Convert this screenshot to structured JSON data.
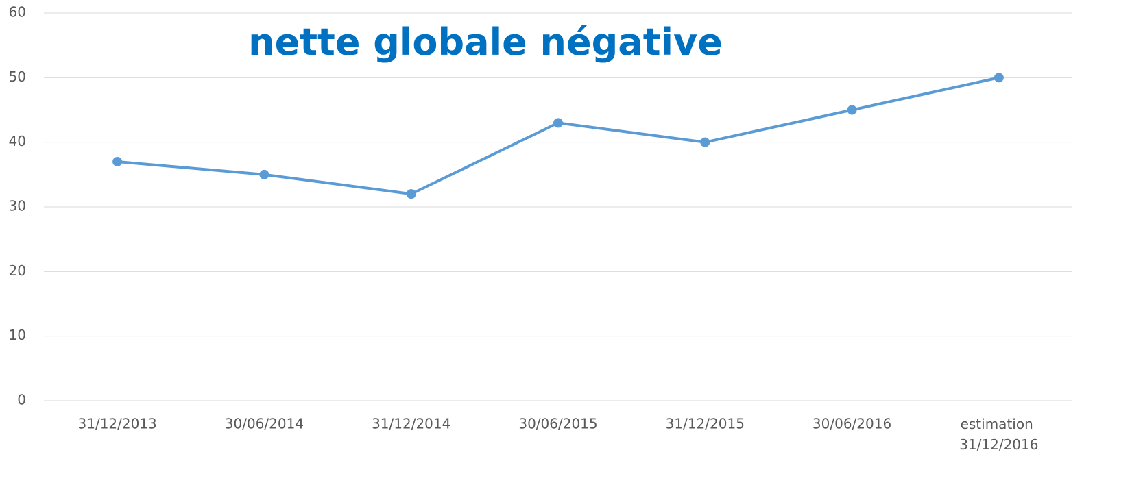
{
  "chart_data": {
    "type": "line",
    "title": "nette globale négative",
    "categories": [
      "31/12/2013",
      "30/06/2014",
      "31/12/2014",
      "30/06/2015",
      "31/12/2015",
      "30/06/2016",
      "estimation 31/12/2016"
    ],
    "series": [
      {
        "name": null,
        "color": "#5b9bd5",
        "values": [
          37,
          35,
          32,
          43,
          40,
          45,
          50
        ]
      }
    ],
    "ylim": [
      0,
      60
    ],
    "yticks": [
      0,
      10,
      20,
      30,
      40,
      50,
      60
    ],
    "grid": true
  }
}
